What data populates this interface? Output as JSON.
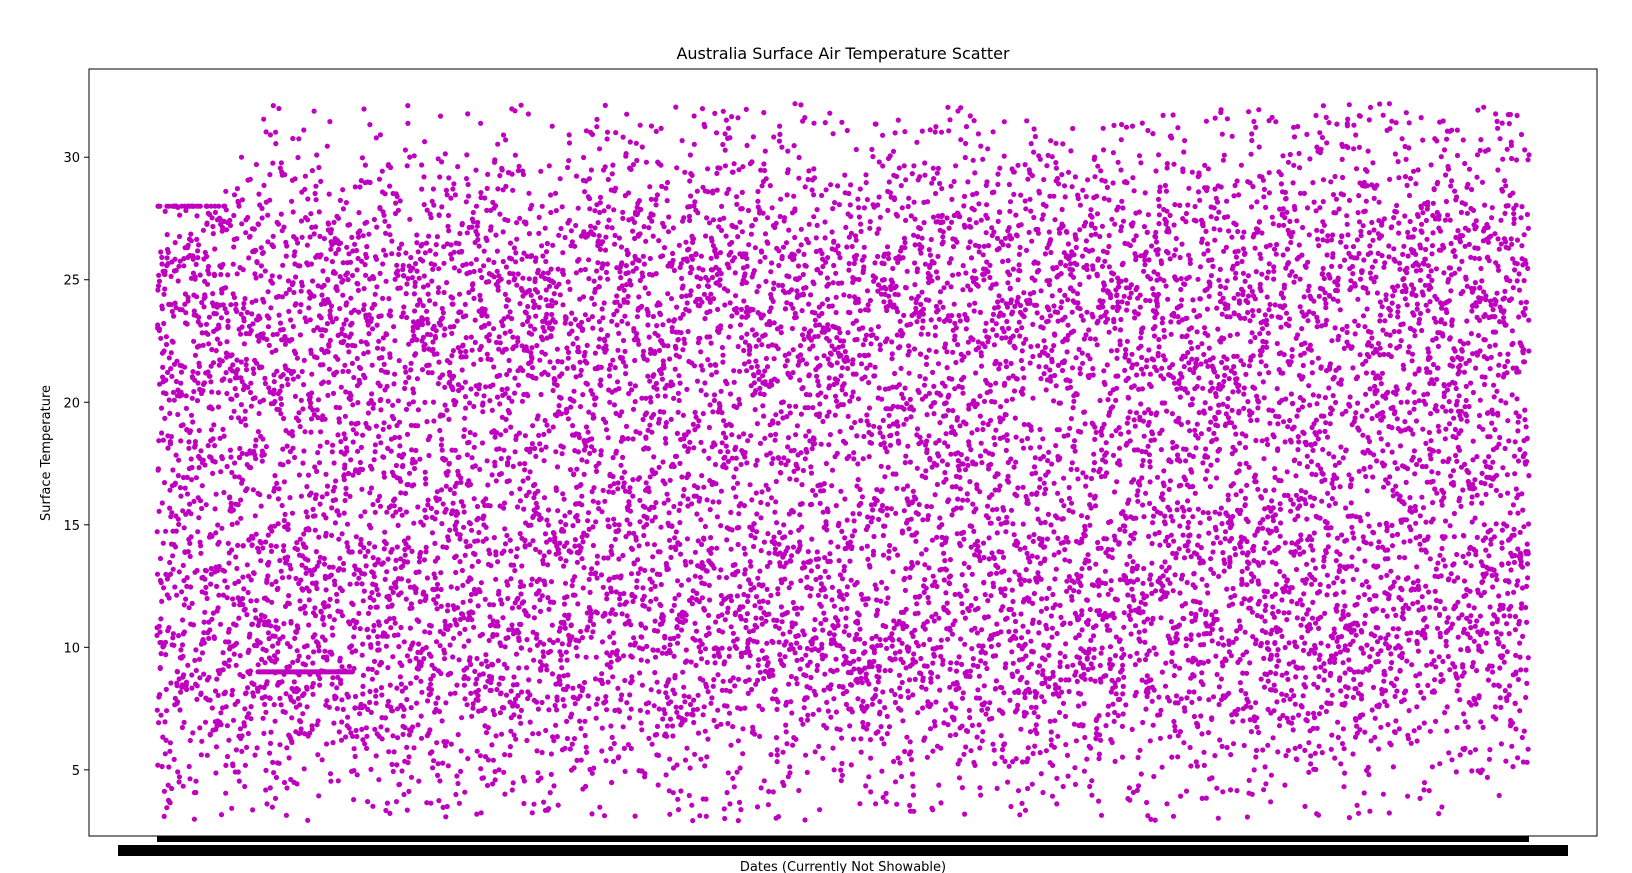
{
  "chart_data": {
    "type": "scatter",
    "title": "Australia Surface Air Temperature Scatter",
    "xlabel": "Dates (Currently Not Showable)",
    "ylabel": "Surface Temperature",
    "ylim": [
      2.3,
      33.6
    ],
    "yticks": [
      5,
      10,
      15,
      20,
      25,
      30
    ],
    "x_tick_labels_visible": false,
    "grid": false,
    "legend": "none",
    "marker_color": "#bf00bf",
    "series": [
      {
        "points_estimated": 12000,
        "y_min": 2.9,
        "y_max": 32.2,
        "highlighted_runs": [
          {
            "y": 9.0,
            "note": "flat run of values near start"
          }
        ]
      }
    ]
  }
}
